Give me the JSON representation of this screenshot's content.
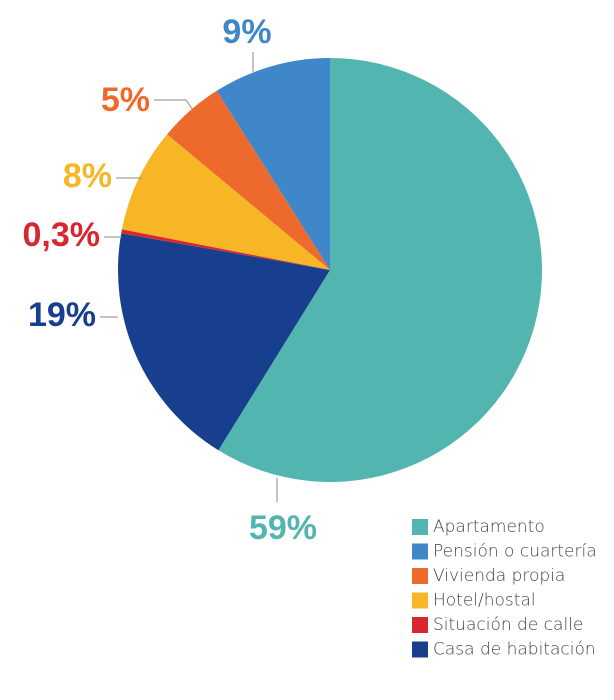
{
  "chart_data": {
    "type": "pie",
    "categories": [
      "Apartamento",
      "Pensión o cuartería",
      "Vivienda propia",
      "Hotel/hostal",
      "Situación de calle",
      "Casa de habitación"
    ],
    "values": [
      59,
      9,
      5,
      8,
      0.3,
      19
    ],
    "value_labels": [
      "59%",
      "9%",
      "5%",
      "8%",
      "0,3%",
      "19%"
    ],
    "colors": [
      "#52b5b0",
      "#3f87c9",
      "#ee6a2c",
      "#f7b626",
      "#d7282f",
      "#173f8d"
    ],
    "legend": "bottom-right"
  }
}
